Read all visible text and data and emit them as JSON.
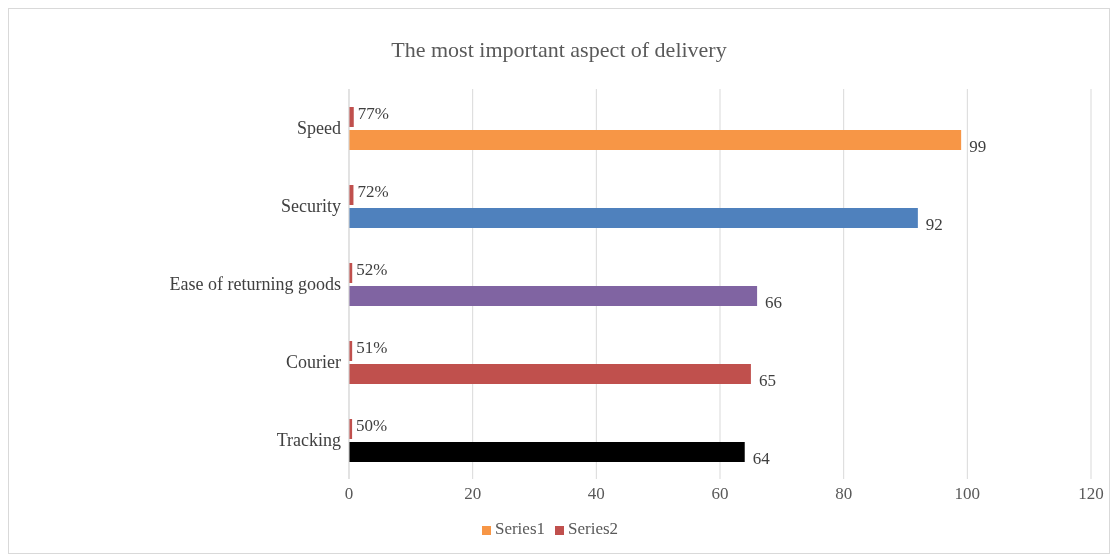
{
  "chart_data": {
    "type": "bar",
    "orientation": "horizontal",
    "title": "The most important aspect of delivery",
    "categories": [
      "Speed",
      "Security",
      "Ease of returning goods",
      "Courier",
      "Tracking"
    ],
    "series": [
      {
        "name": "Series2",
        "color": "#c0504d",
        "values": [
          0.77,
          0.72,
          0.52,
          0.51,
          0.5
        ],
        "value_labels": [
          "77%",
          "72%",
          "52%",
          "51%",
          "50%"
        ]
      },
      {
        "name": "Series1",
        "color": "#f79646",
        "colors": [
          "#f79646",
          "#4f81bd",
          "#8064a2",
          "#c0504d",
          "#000000"
        ],
        "values": [
          99,
          92,
          66,
          65,
          64
        ],
        "value_labels": [
          "99",
          "92",
          "66",
          "65",
          "64"
        ]
      }
    ],
    "xlim": [
      0,
      120
    ],
    "xticks": [
      0,
      20,
      40,
      60,
      80,
      100,
      120
    ],
    "grid": "x",
    "legend": "bottom"
  }
}
